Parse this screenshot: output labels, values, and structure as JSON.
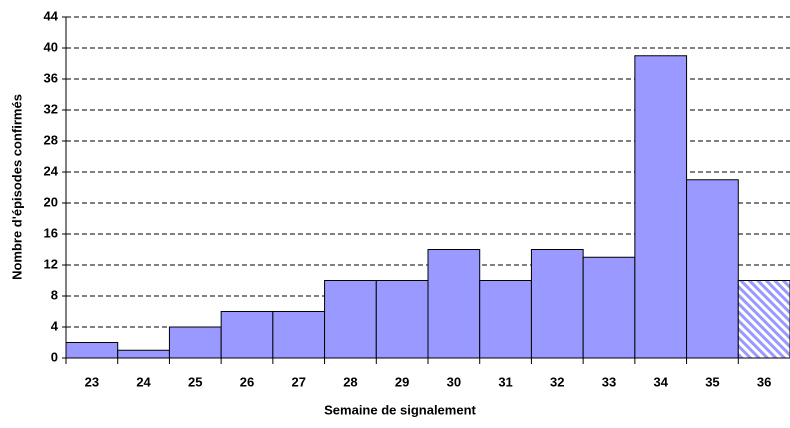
{
  "chart_data": {
    "type": "bar",
    "x_label": "Semaine de signalement",
    "y_label": "Nombre d'épisodes confirmés",
    "categories": [
      "23",
      "24",
      "25",
      "26",
      "27",
      "28",
      "29",
      "30",
      "31",
      "32",
      "33",
      "34",
      "35",
      "36"
    ],
    "values": [
      2,
      1,
      4,
      6,
      6,
      10,
      10,
      14,
      10,
      14,
      13,
      39,
      23,
      10
    ],
    "hatched": [
      false,
      false,
      false,
      false,
      false,
      false,
      false,
      false,
      false,
      false,
      false,
      false,
      false,
      true
    ],
    "color": "#9999ff",
    "ylim": [
      0,
      44
    ],
    "yticks": [
      0,
      4,
      8,
      12,
      16,
      20,
      24,
      28,
      32,
      36,
      40,
      44
    ],
    "grid": true
  }
}
